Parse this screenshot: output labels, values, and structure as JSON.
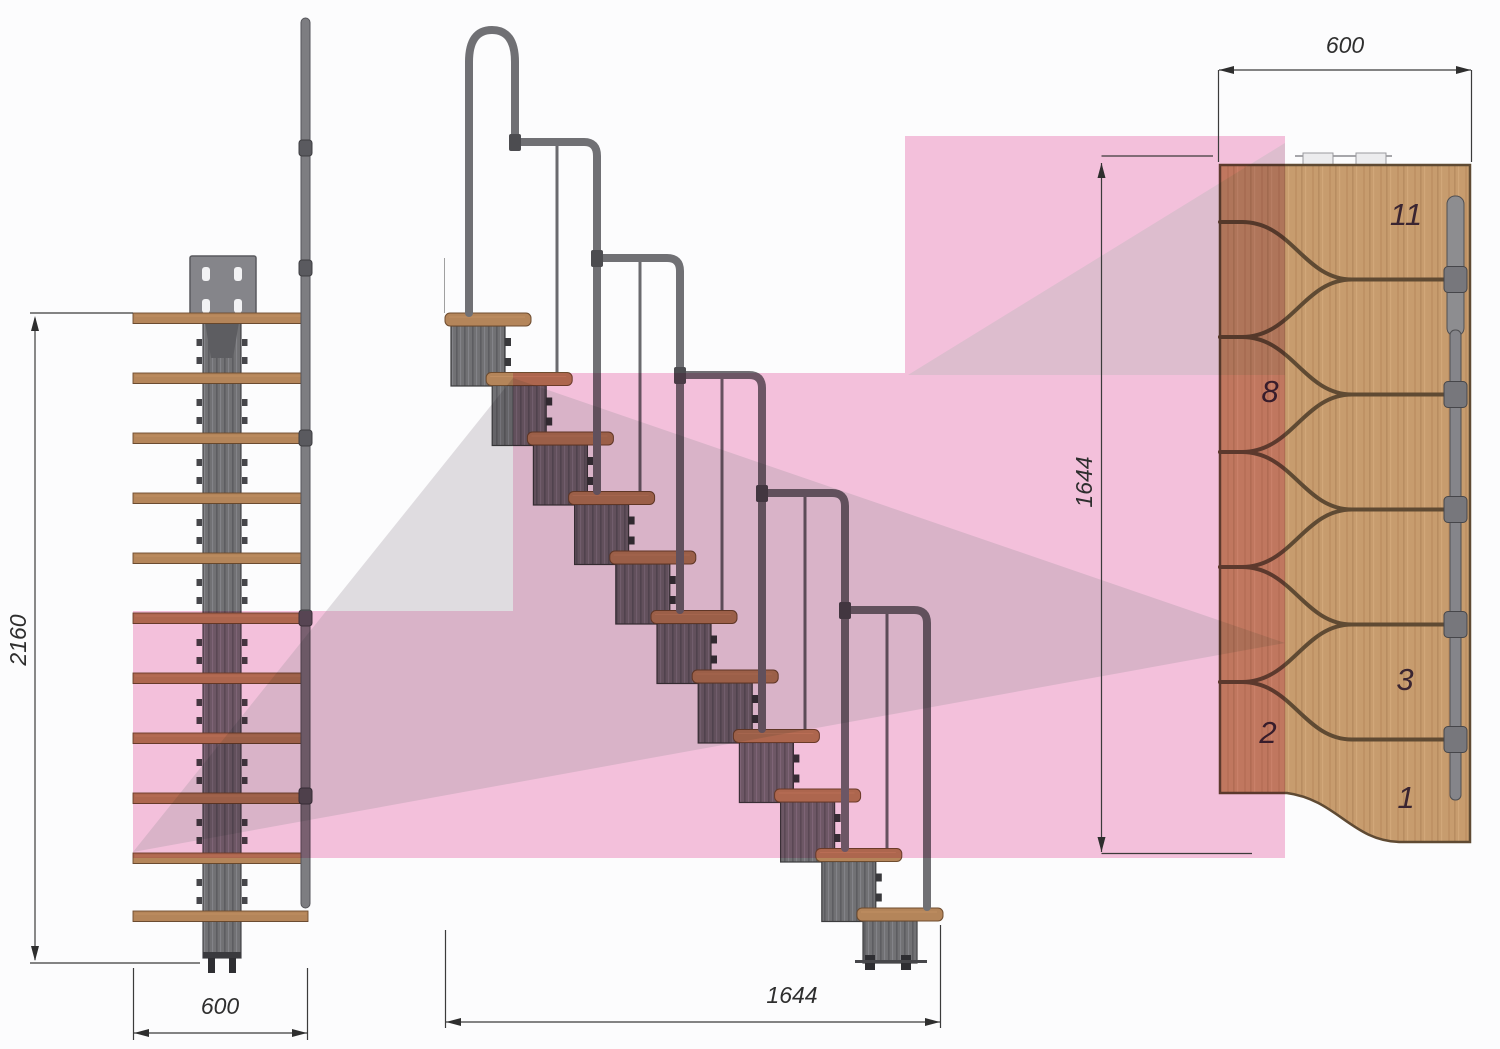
{
  "drawing": {
    "dimensions": {
      "front_height": "2160",
      "front_width": "600",
      "side_length": "1644",
      "plan_width": "600",
      "plan_depth": "1644"
    },
    "plan_labels": {
      "tread_11": "11",
      "tread_8": "8",
      "tread_3": "3",
      "tread_2": "2",
      "tread_1": "1"
    },
    "colors": {
      "overlay_pink": "#f6c3dd",
      "overlay_shade": "#c9bcc4",
      "wood_plan": "#c79c6e",
      "wood_tread": "#b4855a",
      "steel": "#717174",
      "seam": "#5f4a33",
      "dim_line": "#3b3b3b"
    }
  }
}
